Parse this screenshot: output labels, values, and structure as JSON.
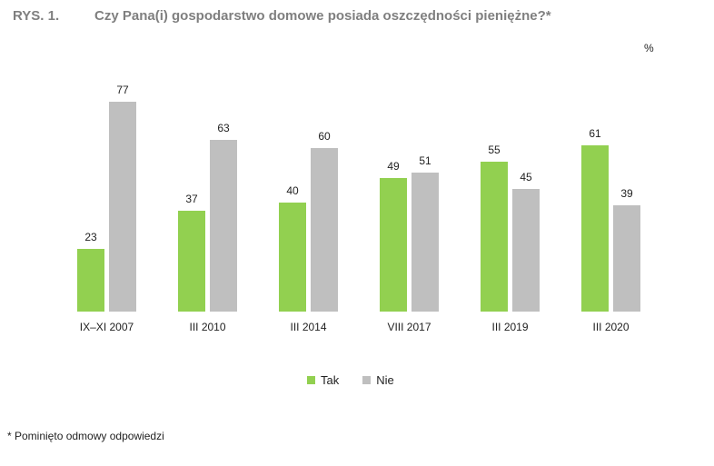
{
  "figure": {
    "label": "RYS. 1.",
    "title": "Czy Pana(i) gospodarstwo domowe posiada oszczędności pieniężne?*",
    "unit": "%",
    "footnote": "* Pominięto odmowy odpowiedzi"
  },
  "chart_data": {
    "type": "bar",
    "title": "Czy Pana(i) gospodarstwo domowe posiada oszczędności pieniężne?*",
    "categories": [
      "IX–XI 2007",
      "III 2010",
      "III 2014",
      "VIII 2017",
      "III 2019",
      "III 2020"
    ],
    "series": [
      {
        "name": "Tak",
        "color": "#92d050",
        "values": [
          23,
          37,
          40,
          49,
          55,
          61
        ]
      },
      {
        "name": "Nie",
        "color": "#bfbfbf",
        "values": [
          77,
          63,
          60,
          51,
          45,
          39
        ]
      }
    ],
    "ylim": [
      0,
      100
    ],
    "grid": false,
    "legend_position": "bottom"
  }
}
